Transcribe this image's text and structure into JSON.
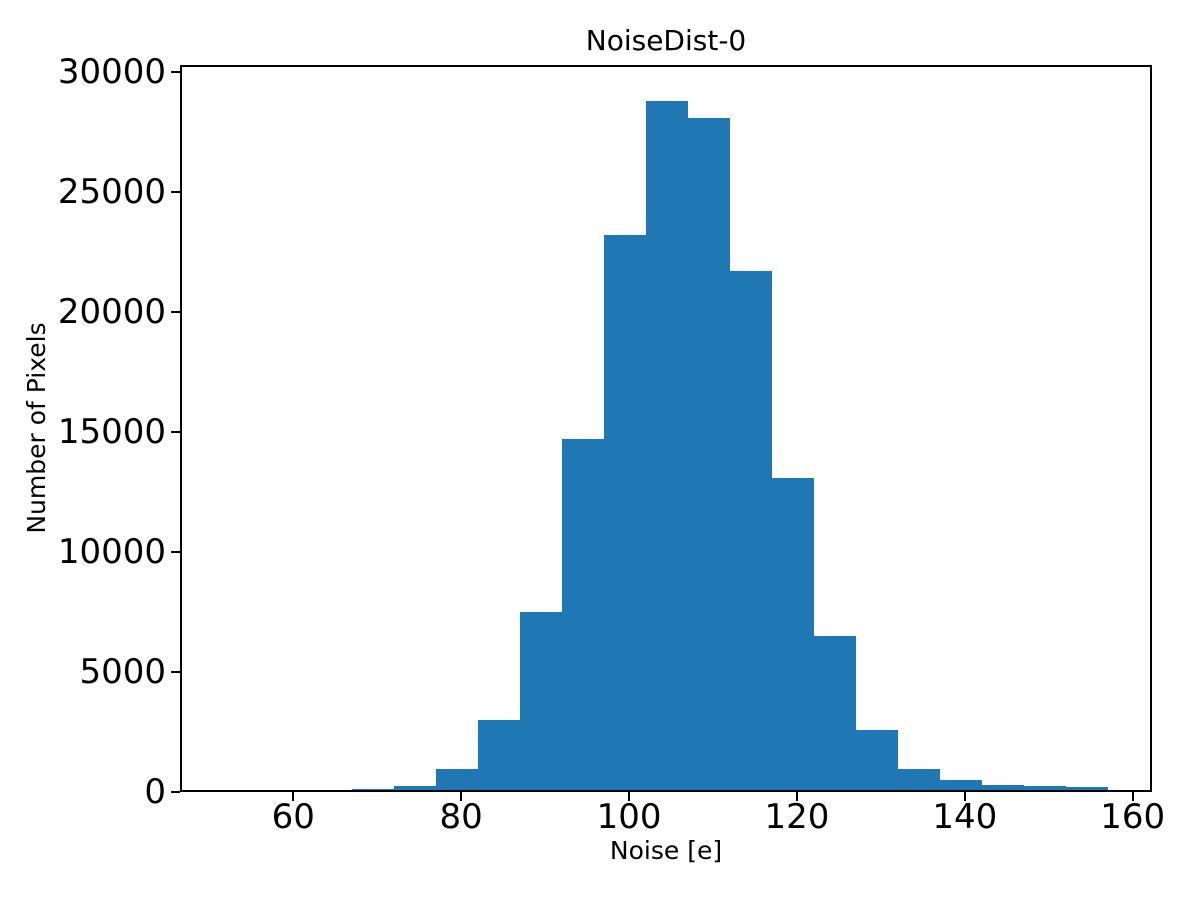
{
  "chart_data": {
    "type": "bar",
    "subtype": "histogram",
    "title": "NoiseDist-0",
    "xlabel": "Noise [e]",
    "ylabel": "Number of Pixels",
    "bar_color": "#1f77b4",
    "axis_color": "#000000",
    "grid": false,
    "legend_position": "none",
    "bin_start": 62,
    "bin_width": 5,
    "bin_edges": [
      62,
      67,
      72,
      77,
      82,
      87,
      92,
      97,
      102,
      107,
      112,
      117,
      122,
      127,
      132,
      137,
      142,
      147,
      152,
      157
    ],
    "counts": [
      80,
      130,
      270,
      950,
      3000,
      7500,
      14700,
      23200,
      28800,
      28100,
      21700,
      13100,
      6500,
      2600,
      950,
      500,
      300,
      250,
      200
    ],
    "xticks": [
      60,
      80,
      100,
      120,
      140,
      160
    ],
    "yticks": [
      0,
      5000,
      10000,
      15000,
      20000,
      25000,
      30000
    ],
    "xtick_labels": [
      "60",
      "80",
      "100",
      "120",
      "140",
      "160"
    ],
    "ytick_labels": [
      "0",
      "5000",
      "10000",
      "15000",
      "20000",
      "25000",
      "30000"
    ],
    "xlim": [
      46.5,
      162.3
    ],
    "ylim": [
      0,
      30300
    ]
  }
}
